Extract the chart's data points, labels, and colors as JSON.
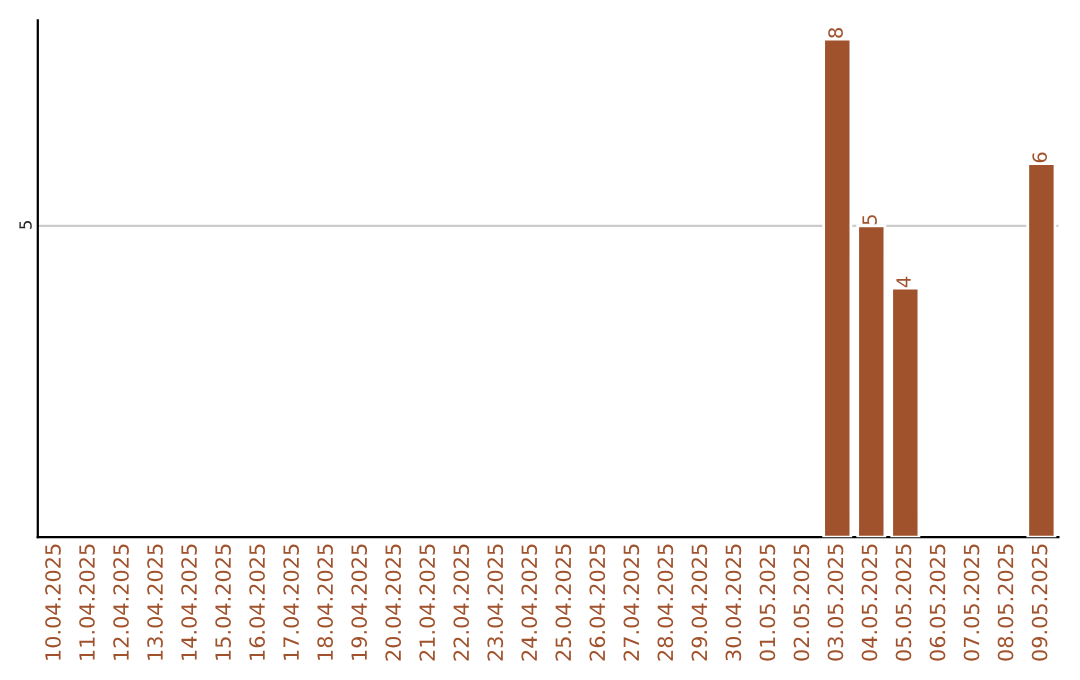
{
  "chart_data": {
    "type": "bar",
    "categories": [
      "10.04.2025",
      "11.04.2025",
      "12.04.2025",
      "13.04.2025",
      "14.04.2025",
      "15.04.2025",
      "16.04.2025",
      "17.04.2025",
      "18.04.2025",
      "19.04.2025",
      "20.04.2025",
      "21.04.2025",
      "22.04.2025",
      "23.04.2025",
      "24.04.2025",
      "25.04.2025",
      "26.04.2025",
      "27.04.2025",
      "28.04.2025",
      "29.04.2025",
      "30.04.2025",
      "01.05.2025",
      "02.05.2025",
      "03.05.2025",
      "04.05.2025",
      "05.05.2025",
      "06.05.2025",
      "07.05.2025",
      "08.05.2025",
      "09.05.2025"
    ],
    "values": [
      null,
      null,
      null,
      null,
      null,
      null,
      null,
      null,
      null,
      null,
      null,
      null,
      null,
      null,
      null,
      null,
      null,
      null,
      null,
      null,
      null,
      null,
      null,
      8,
      5,
      4,
      null,
      null,
      null,
      6
    ],
    "value_labels": [
      null,
      null,
      null,
      null,
      null,
      null,
      null,
      null,
      null,
      null,
      null,
      null,
      null,
      null,
      null,
      null,
      null,
      null,
      null,
      null,
      null,
      null,
      null,
      "8",
      "5",
      "4",
      null,
      null,
      null,
      "6"
    ],
    "color": "#a0522d",
    "ylim": [
      0,
      8.3
    ],
    "yticks": [
      5
    ],
    "grid": "y",
    "legend": false
  }
}
